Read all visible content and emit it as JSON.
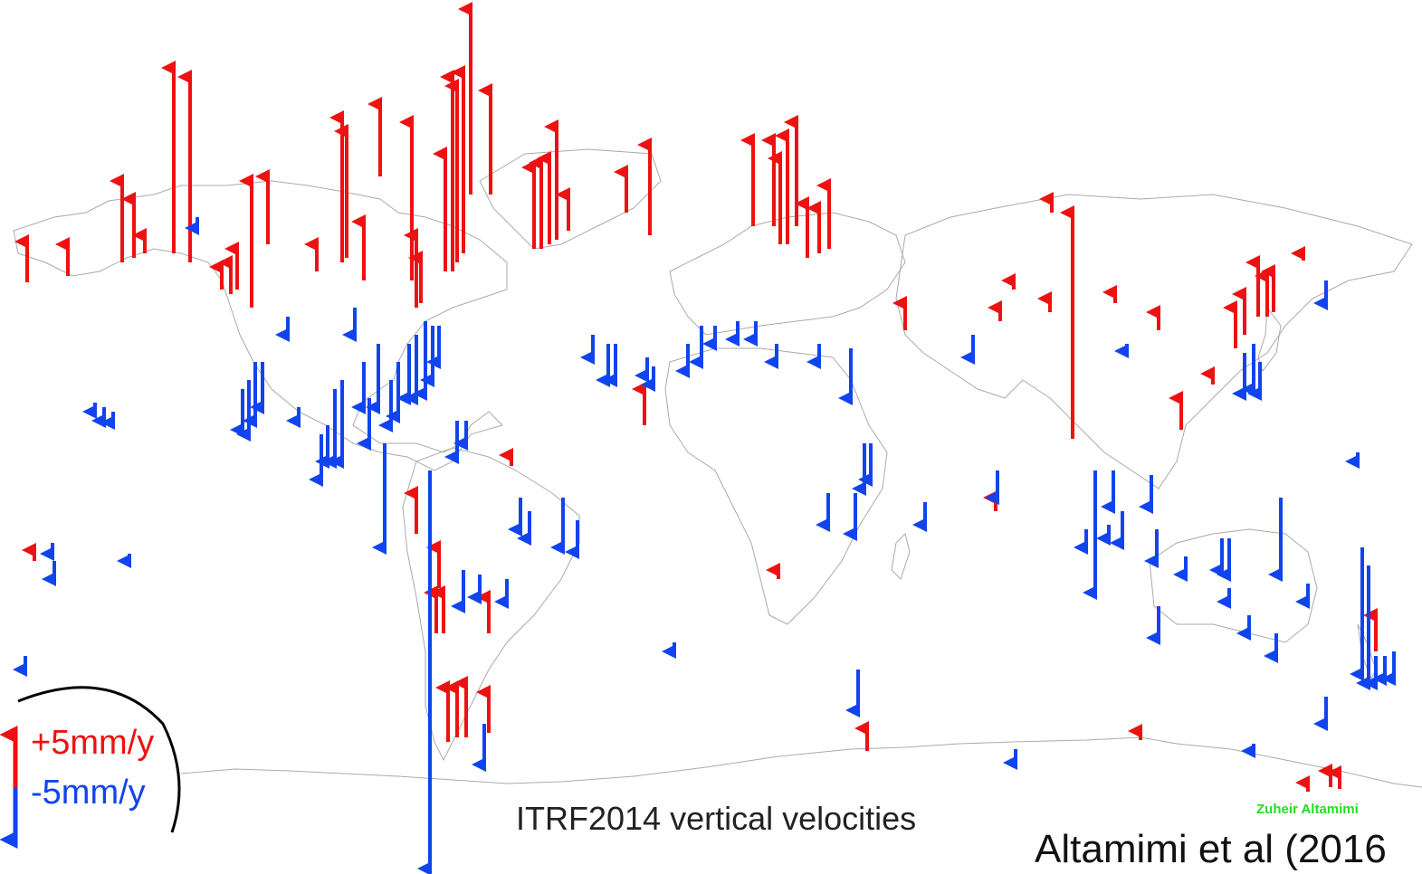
{
  "title": "ITRF2014 vertical velocities",
  "author": "Zuheir Altamimi",
  "citation": "Altamimi et al (2016",
  "legend": {
    "up_label": "+5mm/y",
    "down_label": "-5mm/y",
    "up_color": "#ee1111",
    "down_color": "#1144ee"
  },
  "colors": {
    "coastline": "#aaaaaa",
    "up": "#ee1111",
    "down": "#1144ee",
    "legend_arc": "#000000"
  }
}
